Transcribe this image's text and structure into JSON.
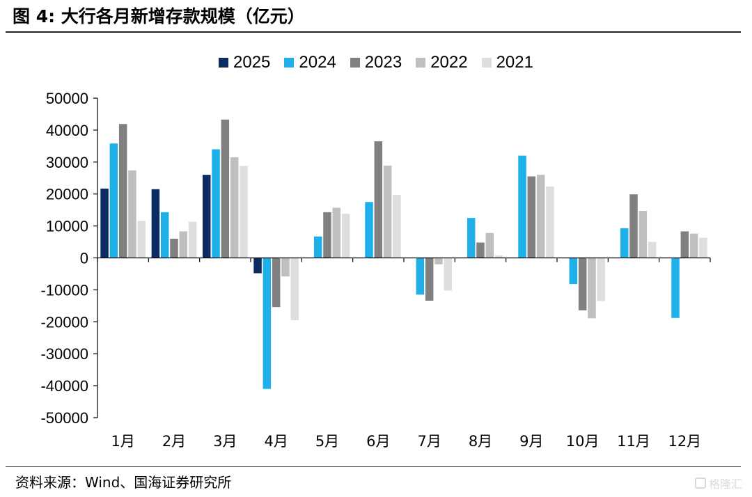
{
  "figure_title": "图 4:  大行各月新增存款规模（亿元）",
  "source_text": "资料来源：Wind、国海证券研究所",
  "watermark_text": "格隆汇",
  "colors": {
    "2025": "#0d2b63",
    "2024": "#1fb0ea",
    "2023": "#808080",
    "2022": "#bfbfbf",
    "2021": "#dedede"
  },
  "chart_data": {
    "type": "bar",
    "title": "",
    "xlabel": "",
    "ylabel": "",
    "ylim": [
      -50000,
      50000
    ],
    "yticks": [
      50000,
      40000,
      30000,
      20000,
      10000,
      0,
      -10000,
      -20000,
      -30000,
      -40000,
      -50000
    ],
    "legend_position": "top-center",
    "grid": false,
    "categories": [
      "1月",
      "2月",
      "3月",
      "4月",
      "5月",
      "6月",
      "7月",
      "8月",
      "9月",
      "10月",
      "11月",
      "12月"
    ],
    "series": [
      {
        "name": "2025",
        "values": [
          21700,
          21500,
          26000,
          -4800,
          null,
          null,
          null,
          null,
          null,
          null,
          null,
          null
        ]
      },
      {
        "name": "2024",
        "values": [
          35800,
          14300,
          34000,
          -41000,
          6700,
          17500,
          -11500,
          12500,
          32000,
          -8200,
          9300,
          -18800
        ]
      },
      {
        "name": "2023",
        "values": [
          41900,
          6000,
          43300,
          -15400,
          14300,
          36500,
          -13400,
          4800,
          25500,
          -16400,
          19900,
          8300
        ]
      },
      {
        "name": "2022",
        "values": [
          27400,
          8300,
          31500,
          -5800,
          15700,
          28900,
          -2000,
          7800,
          26000,
          -18900,
          14700,
          7600
        ]
      },
      {
        "name": "2021",
        "values": [
          11600,
          11300,
          28800,
          -19500,
          13800,
          19700,
          -10200,
          800,
          22300,
          -13500,
          5000,
          6300
        ]
      }
    ]
  }
}
